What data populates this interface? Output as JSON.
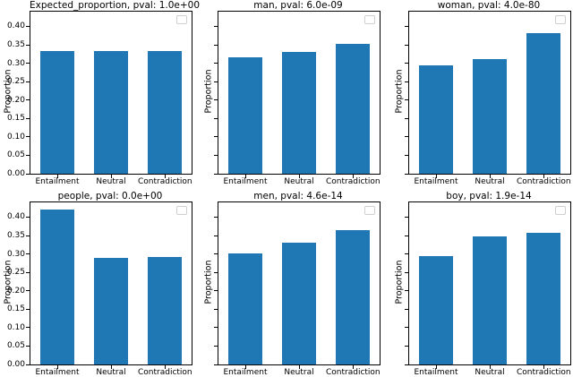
{
  "figure": {
    "bar_color": "#1f77b4",
    "axis_color": "#000000",
    "background": "#ffffff"
  },
  "chart_data": [
    {
      "type": "bar",
      "title": "Expected_proportion, pval: 1.0e+00",
      "categories": [
        "Entailment",
        "Neutral",
        "Contradiction"
      ],
      "values": [
        0.333,
        0.332,
        0.333
      ],
      "xlabel": "",
      "ylabel": "Proportion",
      "ylim": [
        0,
        0.44
      ],
      "yticks": [
        "0.00",
        "0.05",
        "0.10",
        "0.15",
        "0.20",
        "0.25",
        "0.30",
        "0.35",
        "0.40"
      ],
      "yticklabels_shown": true,
      "grid": false,
      "legend": "empty-box-top-right"
    },
    {
      "type": "bar",
      "title": "man, pval: 6.0e-09",
      "categories": [
        "Entailment",
        "Neutral",
        "Contradiction"
      ],
      "values": [
        0.316,
        0.331,
        0.352
      ],
      "xlabel": "",
      "ylabel": "Proportion",
      "ylim": [
        0,
        0.44
      ],
      "yticks": [
        "0.00",
        "0.05",
        "0.10",
        "0.15",
        "0.20",
        "0.25",
        "0.30",
        "0.35",
        "0.40"
      ],
      "yticklabels_shown": false,
      "grid": false,
      "legend": "empty-box-top-right"
    },
    {
      "type": "bar",
      "title": "woman, pval: 4.0e-80",
      "categories": [
        "Entailment",
        "Neutral",
        "Contradiction"
      ],
      "values": [
        0.295,
        0.312,
        0.381
      ],
      "xlabel": "",
      "ylabel": "Proportion",
      "ylim": [
        0,
        0.44
      ],
      "yticks": [
        "0.00",
        "0.05",
        "0.10",
        "0.15",
        "0.20",
        "0.25",
        "0.30",
        "0.35",
        "0.40"
      ],
      "yticklabels_shown": false,
      "grid": false,
      "legend": "empty-box-top-right"
    },
    {
      "type": "bar",
      "title": "people, pval: 0.0e+00",
      "categories": [
        "Entailment",
        "Neutral",
        "Contradiction"
      ],
      "values": [
        0.421,
        0.289,
        0.291
      ],
      "xlabel": "",
      "ylabel": "Proportion",
      "ylim": [
        0,
        0.44
      ],
      "yticks": [
        "0.00",
        "0.05",
        "0.10",
        "0.15",
        "0.20",
        "0.25",
        "0.30",
        "0.35",
        "0.40"
      ],
      "yticklabels_shown": true,
      "grid": false,
      "legend": "empty-box-top-right"
    },
    {
      "type": "bar",
      "title": "men, pval: 4.6e-14",
      "categories": [
        "Entailment",
        "Neutral",
        "Contradiction"
      ],
      "values": [
        0.302,
        0.331,
        0.364
      ],
      "xlabel": "",
      "ylabel": "Proportion",
      "ylim": [
        0,
        0.44
      ],
      "yticks": [
        "0.00",
        "0.05",
        "0.10",
        "0.15",
        "0.20",
        "0.25",
        "0.30",
        "0.35",
        "0.40"
      ],
      "yticklabels_shown": false,
      "grid": false,
      "legend": "empty-box-top-right"
    },
    {
      "type": "bar",
      "title": "boy, pval: 1.9e-14",
      "categories": [
        "Entailment",
        "Neutral",
        "Contradiction"
      ],
      "values": [
        0.294,
        0.347,
        0.357
      ],
      "xlabel": "",
      "ylabel": "Proportion",
      "ylim": [
        0,
        0.44
      ],
      "yticks": [
        "0.00",
        "0.05",
        "0.10",
        "0.15",
        "0.20",
        "0.25",
        "0.30",
        "0.35",
        "0.40"
      ],
      "yticklabels_shown": false,
      "grid": false,
      "legend": "empty-box-top-right"
    }
  ]
}
